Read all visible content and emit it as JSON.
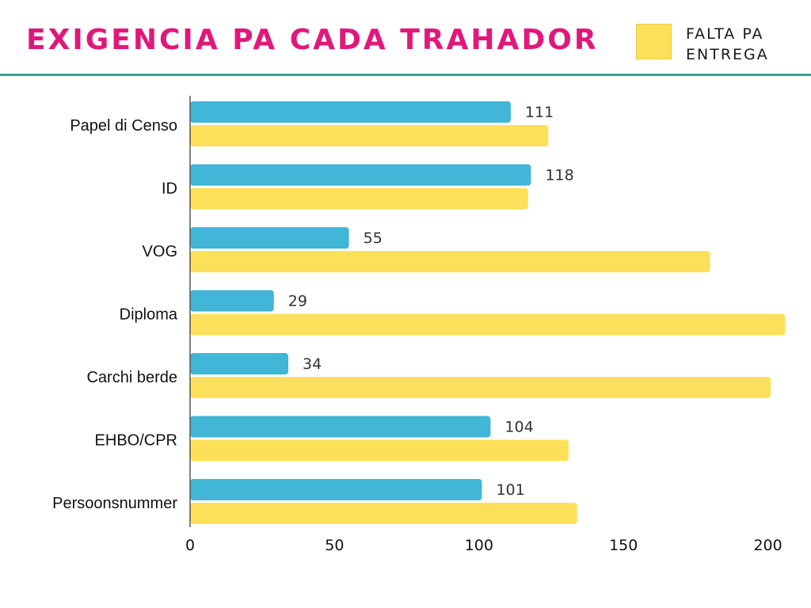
{
  "header": {
    "title": "EXIGENCIA PA CADA TRAHADOR"
  },
  "legend": {
    "label": "FALTA PA ENTREGA"
  },
  "colors": {
    "title": "#e0187b",
    "rule": "#3e9d9d",
    "blue": "#42b6d6",
    "yellow": "#fde05a",
    "axis": "#555555"
  },
  "chart_data": {
    "type": "bar",
    "orientation": "horizontal",
    "title": "EXIGENCIA PA CADA TRAHADOR",
    "categories": [
      "Papel di Censo",
      "ID",
      "VOG",
      "Diploma",
      "Carchi berde",
      "EHBO/CPR",
      "Persoonsnummer"
    ],
    "series": [
      {
        "values": [
          111,
          118,
          55,
          29,
          34,
          104,
          101
        ],
        "color": "#42b6d6",
        "labeled": true
      },
      {
        "name": "FALTA PA ENTREGA",
        "values": [
          124,
          117,
          180,
          206,
          201,
          131,
          134
        ],
        "color": "#fde05a",
        "labeled": false
      }
    ],
    "xlim": [
      0,
      200
    ],
    "xticks": [
      0,
      50,
      100,
      150,
      200
    ],
    "grid": false,
    "legend_position": "top-right"
  }
}
